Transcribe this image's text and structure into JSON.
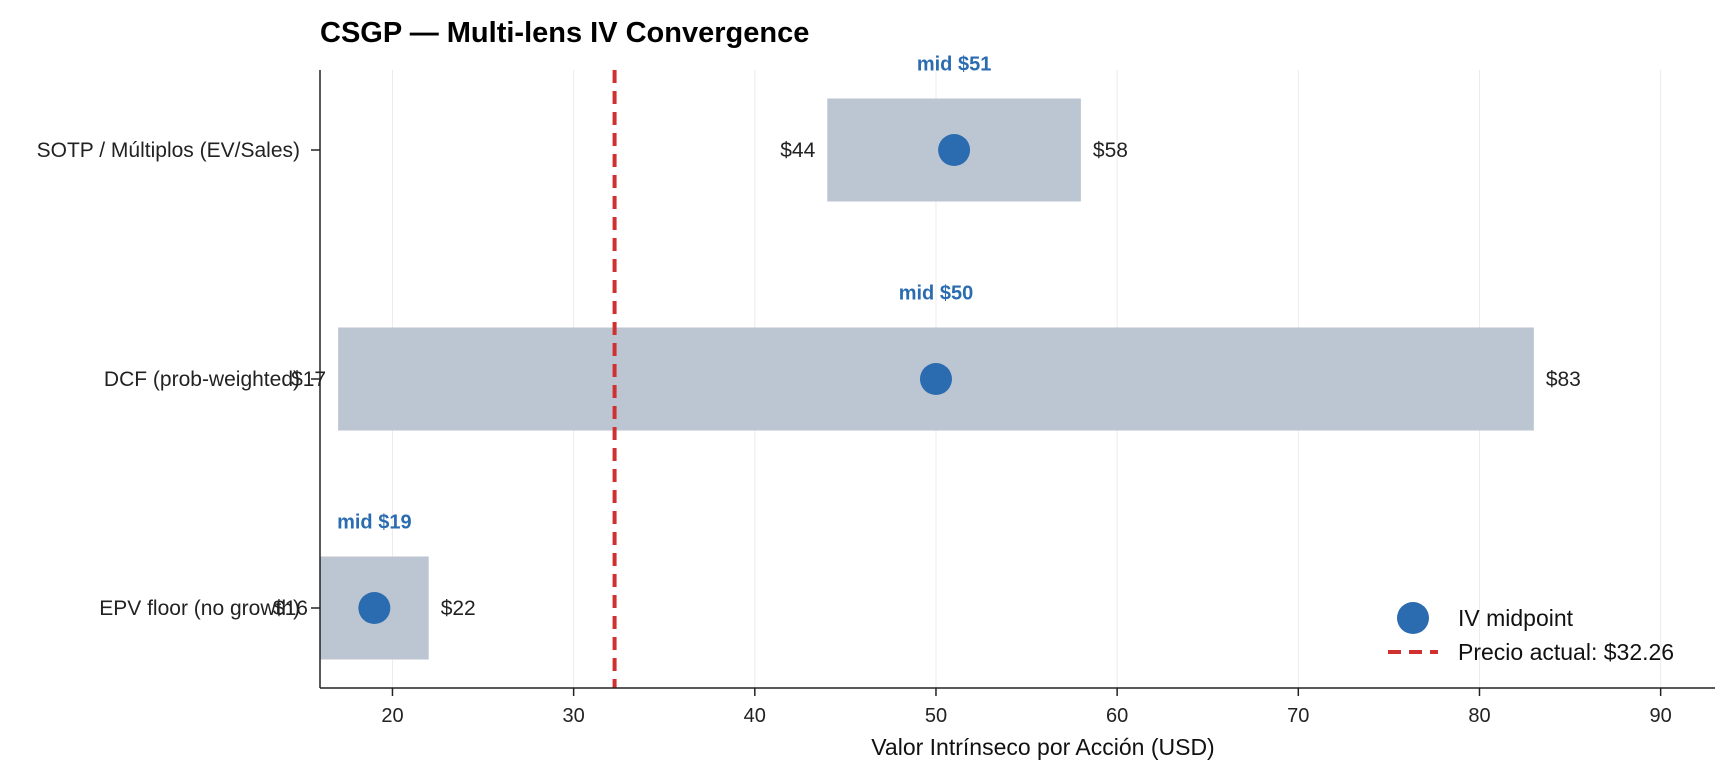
{
  "chart_data": {
    "type": "range-dot",
    "title": "CSGP — Multi-lens IV Convergence",
    "xlabel": "Valor Intrínseco por Acción (USD)",
    "ylabel": "",
    "xlim": [
      16,
      93
    ],
    "xticks": [
      20,
      30,
      40,
      50,
      60,
      70,
      80,
      90
    ],
    "grid": "vertical",
    "categories": [
      "SOTP / Múltiplos (EV/Sales)",
      "DCF (prob-weighted)",
      "EPV floor (no growth)"
    ],
    "ranges": [
      {
        "low": 44,
        "high": 58,
        "mid": 51,
        "low_label": "$44",
        "high_label": "$58",
        "mid_label": "mid $51"
      },
      {
        "low": 17,
        "high": 83,
        "mid": 50,
        "low_label": "$17",
        "high_label": "$83",
        "mid_label": "mid $50"
      },
      {
        "low": 16,
        "high": 22,
        "mid": 19,
        "low_label": "$16",
        "high_label": "$22",
        "mid_label": "mid $19"
      }
    ],
    "reference_line": {
      "value": 32.26,
      "label": "Precio actual: $32.26"
    },
    "legend": {
      "placement": "bottom-right",
      "entries": [
        "IV midpoint",
        "Precio actual: $32.26"
      ]
    },
    "colors": {
      "range_bar": "#bcc6d2",
      "midpoint": "#2b6cb0",
      "mid_label": "#2b6cb0",
      "reference_line": "#d03030",
      "axis": "#222222",
      "grid": "#ececec"
    }
  }
}
